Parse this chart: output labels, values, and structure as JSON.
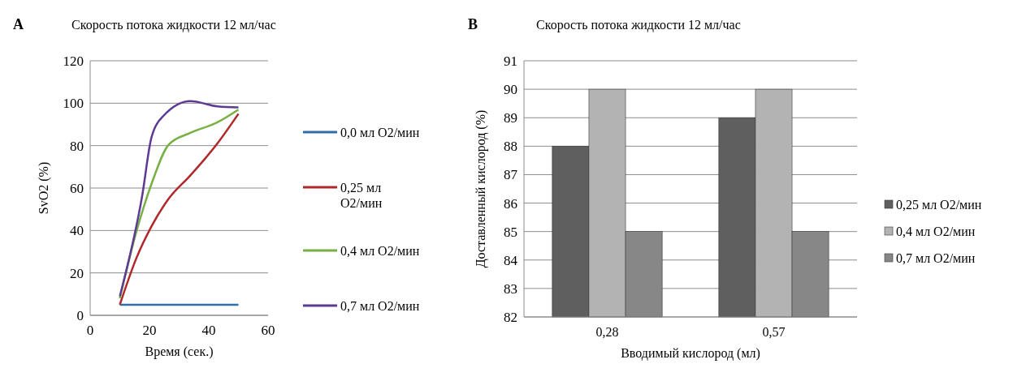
{
  "chart_data": [
    {
      "type": "line",
      "title": "Скорость потока жидкости 12 мл/час",
      "xlabel": "Время (сек.)",
      "ylabel": "SvO2 (%)",
      "annotations": [
        "A"
      ],
      "xlim": [
        0,
        60
      ],
      "xticks": [
        0,
        20,
        40,
        60
      ],
      "ylim": [
        0,
        120
      ],
      "yticks": [
        0,
        20,
        40,
        60,
        80,
        100,
        120
      ],
      "grid": "y",
      "legend": "right",
      "marker": "none",
      "line_style": "solid",
      "series": [
        {
          "name": "0,0 мл O2/мин",
          "color": "#2f6ea8",
          "x": [
            10,
            50
          ],
          "values": [
            5,
            5
          ]
        },
        {
          "name": "0,25 мл O2/мин",
          "color": "#b0282a",
          "x": [
            10,
            15.6,
            20.7,
            26.5,
            33.8,
            42.9,
            50
          ],
          "values": [
            5,
            27,
            42,
            55,
            66,
            81,
            95
          ]
        },
        {
          "name": "0,4 мл O2/мин",
          "color": "#78b043",
          "x": [
            10,
            15.6,
            20.7,
            26.5,
            33.8,
            42.9,
            50
          ],
          "values": [
            8,
            39.5,
            62,
            80.5,
            86,
            91,
            97
          ]
        },
        {
          "name": "0,7 мл O2/мин",
          "color": "#5d3b93",
          "x": [
            10,
            17.5,
            20.7,
            24.7,
            33.8,
            42.9,
            50
          ],
          "values": [
            9,
            56,
            84,
            94,
            101,
            98.5,
            98
          ]
        }
      ]
    },
    {
      "type": "bar",
      "title": "Скорость потока жидкости 12 мл/час",
      "xlabel": "Вводимый кислород (мл)",
      "ylabel": "Доставленный кислород (%)",
      "annotations": [
        "B"
      ],
      "categories": [
        "0,28",
        "0,57"
      ],
      "ylim": [
        82,
        91
      ],
      "yticks": [
        82,
        83,
        84,
        85,
        86,
        87,
        88,
        89,
        90,
        91
      ],
      "grid": "y",
      "legend": "right",
      "series": [
        {
          "name": "0,25 мл O2/мин",
          "color": "#5f5f5f",
          "values": [
            88,
            89
          ]
        },
        {
          "name": "0,4 мл O2/мин",
          "color": "#b3b3b3",
          "values": [
            90,
            90
          ]
        },
        {
          "name": "0,7 мл O2/мин",
          "color": "#878787",
          "values": [
            85,
            85
          ]
        }
      ]
    }
  ]
}
